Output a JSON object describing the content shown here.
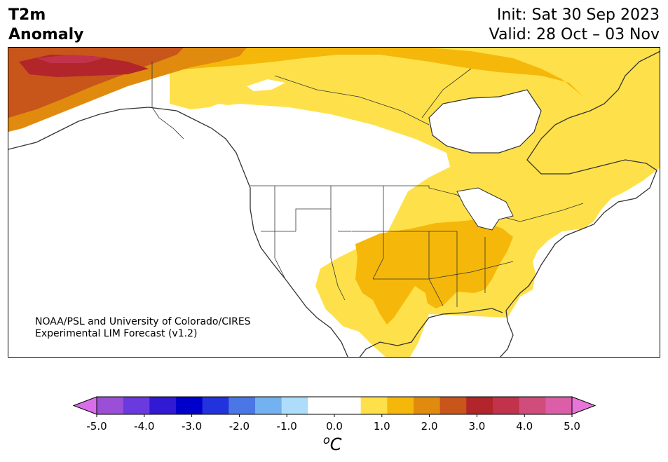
{
  "title": {
    "line1": "T2m",
    "line2": "Anomaly"
  },
  "dates": {
    "init": "Init: Sat 30 Sep 2023",
    "valid": "Valid: 28 Oct – 03 Nov"
  },
  "credit": {
    "line1": "NOAA/PSL and University of Colorado/CIRES",
    "line2": "Experimental LIM Forecast (v1.2)"
  },
  "colorbar": {
    "unit_prefix": "o",
    "unit_main": "C",
    "ticks": [
      "-5.0",
      "-4.0",
      "-3.0",
      "-2.0",
      "-1.0",
      "0.0",
      "1.0",
      "2.0",
      "3.0",
      "4.0",
      "5.0"
    ],
    "colors": [
      "#d86fe8",
      "#9b4fd6",
      "#6b3adf",
      "#3219d4",
      "#0000cc",
      "#2233dd",
      "#4a77e5",
      "#74b1f0",
      "#aedcfb",
      "#ffffff",
      "#ffffff",
      "#fee14a",
      "#f5b80a",
      "#e08b0e",
      "#c8551a",
      "#b2252a",
      "#c0334b",
      "#d04c7a",
      "#dc5ea8",
      "#e774d8"
    ]
  },
  "map": {
    "region": "North America",
    "anomaly_areas": [
      {
        "region": "Alaska interior",
        "level": "+3.0 to +3.5 °C"
      },
      {
        "region": "Alaska / Yukon",
        "level": "+2.0 to +3.0 °C"
      },
      {
        "region": "Northern Canada",
        "level": "+1.0 to +2.0 °C"
      },
      {
        "region": "Southern Plains and Southeast US",
        "level": "+1.0 to +1.5 °C"
      },
      {
        "region": "Eastern Canada and Eastern US",
        "level": "+0.5 to +1.0 °C"
      },
      {
        "region": "Western US and Northern Plains",
        "level": "-0.5 to +0.5 °C"
      }
    ]
  }
}
